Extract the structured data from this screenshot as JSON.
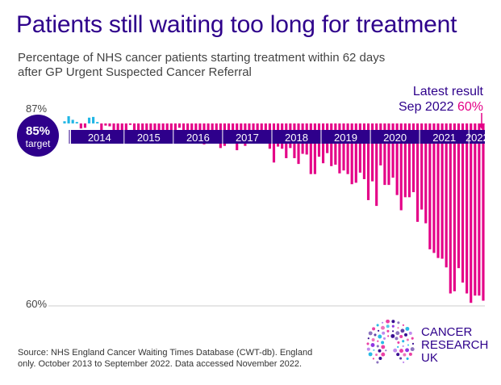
{
  "title": "Patients still waiting too long for treatment",
  "subtitle": "Percentage of NHS cancer patients starting treatment within 62 days after GP Urgent Suspected Cancer Referral",
  "latest": {
    "label": "Latest result",
    "date": "Sep 2022",
    "value": "60%"
  },
  "source": "Source: NHS England Cancer Waiting Times Database (CWT-db). England only. October 2013 to September 2022. Data accessed November 2022.",
  "logo": {
    "line1": "CANCER",
    "line2": "RESEARCH",
    "line3": "UK"
  },
  "chart_data": {
    "type": "bar",
    "title": "Patients still waiting too long for treatment",
    "subtitle": "Percentage of NHS cancer patients starting treatment within 62 days after GP Urgent Suspected Cancer Referral",
    "xlabel": "",
    "ylabel": "",
    "ylim": [
      60,
      87
    ],
    "target": 85,
    "target_label": [
      "85%",
      "target"
    ],
    "ytick_labels": [
      "87%",
      "60%"
    ],
    "ytick_values": [
      87,
      60
    ],
    "years": [
      "2014",
      "2015",
      "2016",
      "2017",
      "2018",
      "2019",
      "2020",
      "2021",
      "2022"
    ],
    "period": "October 2013 to September 2022",
    "values": [
      85.3,
      86.0,
      85.5,
      85.2,
      84.3,
      84.4,
      85.8,
      85.9,
      85.2,
      84.0,
      84.7,
      84.6,
      83.8,
      84.0,
      82.6,
      84.1,
      84.8,
      83.2,
      82.7,
      83.8,
      83.3,
      82.7,
      83.5,
      82.8,
      82.5,
      83.7,
      82.8,
      83.2,
      84.4,
      82.7,
      82.6,
      83.6,
      83.2,
      82.7,
      82.1,
      82.5,
      82.9,
      83.1,
      81.6,
      81.9,
      82.9,
      83.2,
      81.3,
      82.2,
      81.9,
      82.6,
      83.2,
      82.3,
      82.7,
      82.5,
      81.5,
      79.6,
      81.8,
      81.5,
      80.2,
      81.6,
      80.2,
      79.4,
      80.8,
      80.7,
      78.0,
      78.0,
      80.4,
      79.5,
      80.9,
      79.1,
      79.3,
      78.1,
      78.5,
      78.0,
      76.6,
      76.8,
      78.2,
      77.3,
      74.4,
      77.0,
      73.6,
      79.2,
      76.5,
      76.5,
      77.5,
      75.1,
      73.0,
      74.8,
      74.8,
      75.5,
      71.4,
      73.1,
      71.2,
      67.6,
      67.1,
      66.4,
      66.3,
      65.1,
      61.5,
      61.8,
      65.0,
      63.0,
      61.5,
      60.2,
      61.2,
      61.2,
      60.5
    ]
  }
}
